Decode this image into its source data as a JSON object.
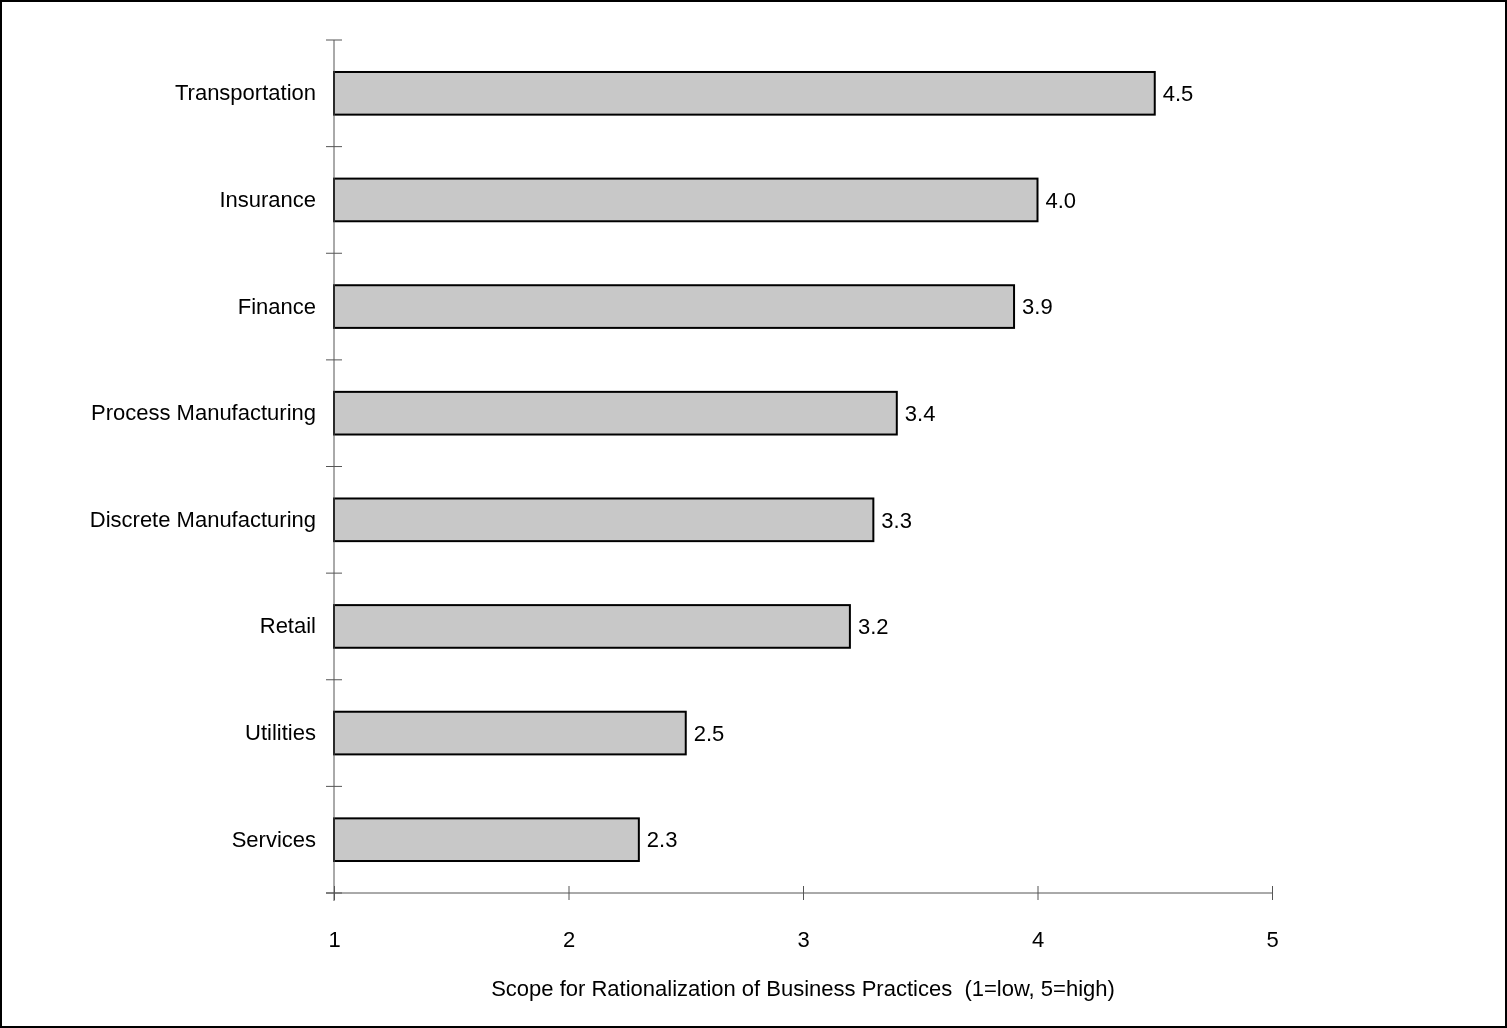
{
  "chart_data": {
    "type": "bar",
    "orientation": "horizontal",
    "xlabel": "Scope for Rationalization of Business Practices  (1=low, 5=high)",
    "categories": [
      "Transportation",
      "Insurance",
      "Finance",
      "Process Manufacturing",
      "Discrete Manufacturing",
      "Retail",
      "Utilities",
      "Services"
    ],
    "values": [
      4.5,
      4.0,
      3.9,
      3.4,
      3.3,
      3.2,
      2.5,
      2.3
    ],
    "value_labels": [
      "4.5",
      "4.0",
      "3.9",
      "3.4",
      "3.3",
      "3.2",
      "2.5",
      "2.3"
    ],
    "color": "#c8c8c8",
    "xlim": [
      1,
      5
    ],
    "xticks": [
      1,
      2,
      3,
      4,
      5
    ]
  }
}
